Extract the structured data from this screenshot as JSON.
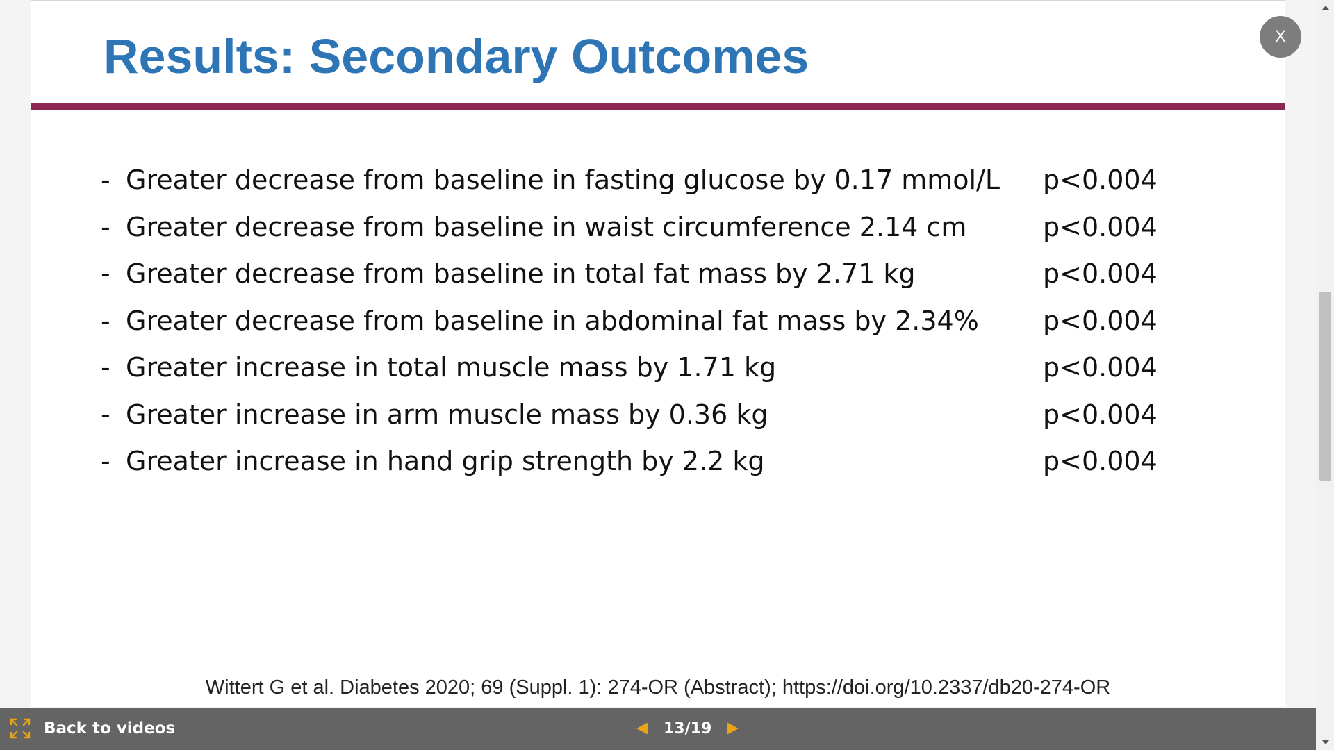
{
  "slide": {
    "title": "Results: Secondary Outcomes",
    "bullets": [
      {
        "dash": "-",
        "text": "Greater decrease from baseline in fasting glucose by 0.17 mmol/L",
        "p": "p<0.004"
      },
      {
        "dash": "-",
        "text": "Greater decrease from baseline in waist circumference 2.14 cm",
        "p": "p<0.004"
      },
      {
        "dash": "-",
        "text": "Greater decrease from baseline in total fat mass by 2.71 kg",
        "p": "p<0.004"
      },
      {
        "dash": "-",
        "text": "Greater decrease from baseline in abdominal fat mass by 2.34%",
        "p": "p<0.004"
      },
      {
        "dash": "-",
        "text": "Greater increase in total muscle mass by 1.71 kg",
        "p": "p<0.004"
      },
      {
        "dash": "-",
        "text": "Greater increase in arm muscle mass by 0.36 kg",
        "p": "p<0.004"
      },
      {
        "dash": "-",
        "text": "Greater increase in hand grip strength by 2.2 kg",
        "p": "p<0.004"
      }
    ],
    "citation": "Wittert G et al. Diabetes 2020; 69 (Suppl. 1): 274-OR (Abstract); https://doi.org/10.2337/db20-274-OR"
  },
  "close_button": {
    "label": "X"
  },
  "bottom_bar": {
    "back_label": "Back to videos",
    "page_indicator": "13/19",
    "expand_icon": "expand-icon",
    "prev_icon": "prev-arrow-icon",
    "next_icon": "next-arrow-icon"
  },
  "colors": {
    "title": "#2e75b6",
    "title_rule": "#8b2750",
    "bottom_bar": "#646464",
    "pager_arrows": "#e8a317",
    "close_button": "#7d7d7d"
  }
}
